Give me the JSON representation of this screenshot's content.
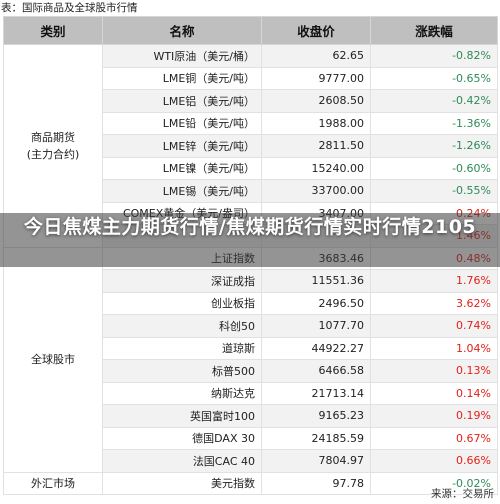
{
  "caption": "表：国际商品及全球股市行情",
  "headers": {
    "category": "类别",
    "name": "名称",
    "price": "收盘价",
    "change": "涨跌幅"
  },
  "groups": {
    "futures": "商品期货\n(主力合约)",
    "stocks": "全球股市",
    "fx": "外汇市场"
  },
  "rows": [
    {
      "name": "WTI原油（美元/桶）",
      "price": "62.65",
      "change": "-0.82%"
    },
    {
      "name": "LME铜（美元/吨）",
      "price": "9777.00",
      "change": "-0.65%"
    },
    {
      "name": "LME铝（美元/吨）",
      "price": "2608.50",
      "change": "-0.42%"
    },
    {
      "name": "LME铅（美元/吨）",
      "price": "1988.00",
      "change": "-1.36%"
    },
    {
      "name": "LME锌（美元/吨）",
      "price": "2811.50",
      "change": "-1.26%"
    },
    {
      "name": "LME镍（美元/吨）",
      "price": "15240.00",
      "change": "-0.60%"
    },
    {
      "name": "LME锡（美元/吨）",
      "price": "33700.00",
      "change": "-0.55%"
    },
    {
      "name": "COMEX黄金（美元/盎司）",
      "price": "3407.00",
      "change": "0.24%"
    },
    {
      "name": "",
      "price": "",
      "change": "1.46%"
    },
    {
      "name": "上证指数",
      "price": "3683.46",
      "change": "0.48%"
    },
    {
      "name": "深证成指",
      "price": "11551.36",
      "change": "1.76%"
    },
    {
      "name": "创业板指",
      "price": "2496.50",
      "change": "3.62%"
    },
    {
      "name": "科创50",
      "price": "1077.70",
      "change": "0.74%"
    },
    {
      "name": "道琼斯",
      "price": "44922.27",
      "change": "1.04%"
    },
    {
      "name": "标普500",
      "price": "6466.58",
      "change": "0.13%"
    },
    {
      "name": "纳斯达克",
      "price": "21713.14",
      "change": "0.14%"
    },
    {
      "name": "英国富时100",
      "price": "9165.23",
      "change": "0.19%"
    },
    {
      "name": "德国DAX 30",
      "price": "24185.59",
      "change": "0.67%"
    },
    {
      "name": "法国CAC 40",
      "price": "7804.97",
      "change": "0.66%"
    },
    {
      "name": "美元指数",
      "price": "97.78",
      "change": "-0.02%"
    }
  ],
  "source": "来源：交易所",
  "headline": "今日焦煤主力期货行情/焦煤期货行情实时行情2105",
  "colors": {
    "up": "#e0221a",
    "down": "#2e8b57",
    "header_bg": "#bfbfbf",
    "stripe": "#f2f2f2"
  }
}
